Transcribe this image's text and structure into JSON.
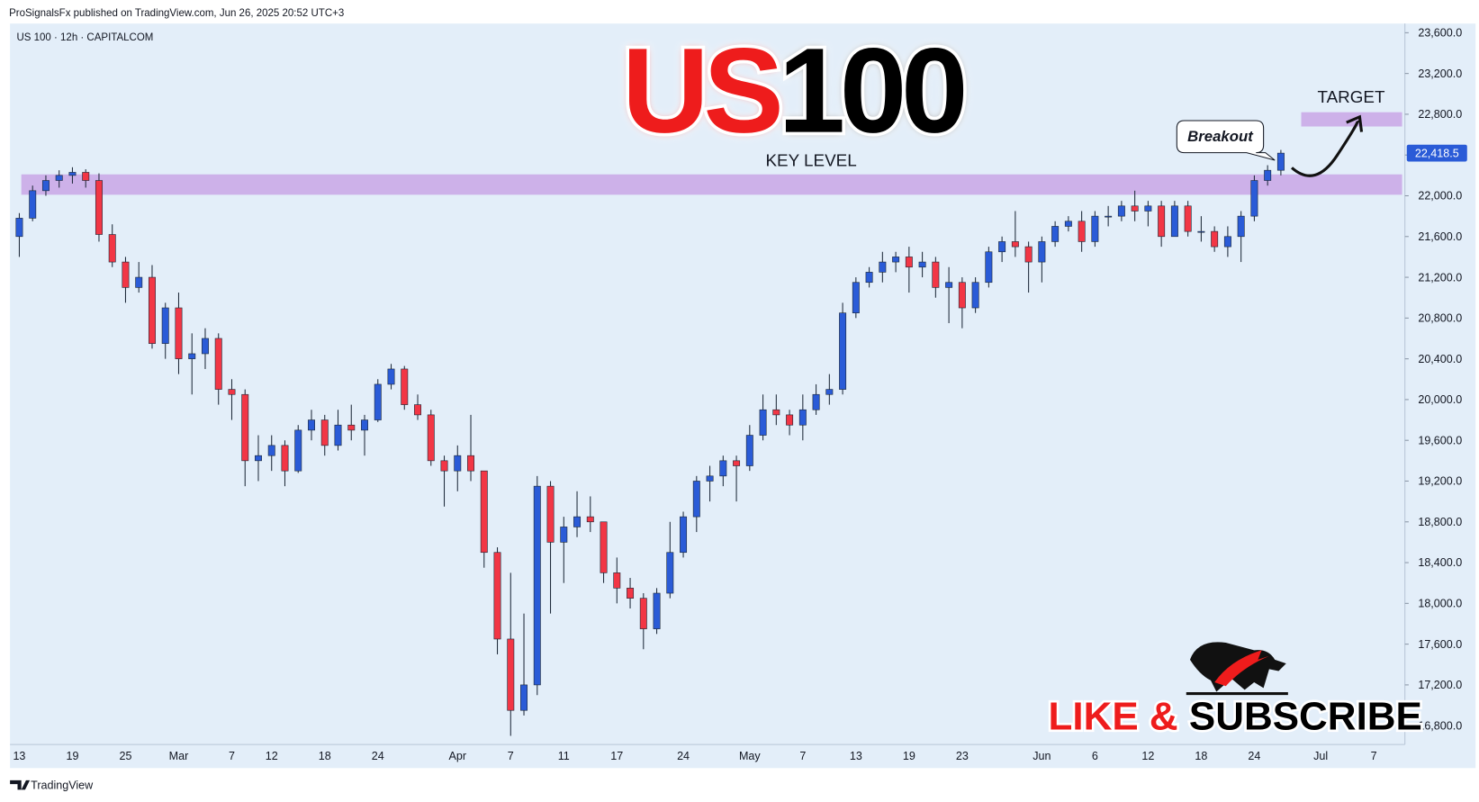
{
  "chart_data": {
    "type": "candlestick",
    "header": "ProSignalsFx published on TradingView.com, Jun 26, 2025 20:52 UTC+3",
    "symbol": "US 100 · 12h · CAPITALCOM",
    "title": [
      "US",
      "100"
    ],
    "title_colors": [
      "#ee1c1c",
      "#000000"
    ],
    "footer": "TradingView",
    "up_color": "#2a5bd7",
    "down_color": "#f23645",
    "grid": false,
    "ylim": [
      16615,
      23690
    ],
    "yticks": [
      {
        "value": 16800,
        "label": "16,800.0"
      },
      {
        "value": 17200,
        "label": "17,200.0"
      },
      {
        "value": 17600,
        "label": "17,600.0"
      },
      {
        "value": 18000,
        "label": "18,000.0"
      },
      {
        "value": 18400,
        "label": "18,400.0"
      },
      {
        "value": 18800,
        "label": "18,800.0"
      },
      {
        "value": 19200,
        "label": "19,200.0"
      },
      {
        "value": 19600,
        "label": "19,600.0"
      },
      {
        "value": 20000,
        "label": "20,000.0"
      },
      {
        "value": 20400,
        "label": "20,400.0"
      },
      {
        "value": 20800,
        "label": "20,800.0"
      },
      {
        "value": 21200,
        "label": "21,200.0"
      },
      {
        "value": 21600,
        "label": "21,600.0"
      },
      {
        "value": 22000,
        "label": "22,000.0"
      },
      {
        "value": 22400,
        "label": "22,400.0"
      },
      {
        "value": 22800,
        "label": "22,800.0"
      },
      {
        "value": 23200,
        "label": "23,200.0"
      },
      {
        "value": 23600,
        "label": "23,600.0"
      }
    ],
    "last_price": {
      "value": 22418.5,
      "label": "22,418.5"
    },
    "key_level": {
      "label": "KEY LEVEL",
      "range": [
        22010,
        22210
      ],
      "color": "#c9a6e6"
    },
    "target": {
      "label": "TARGET",
      "range": [
        22680,
        22820
      ],
      "color": "#c9a6e6"
    },
    "annotation": "Breakout",
    "subscribe": [
      "LIKE &",
      "SUBSCRIBE"
    ],
    "categories": [
      "13",
      null,
      null,
      null,
      "19",
      null,
      null,
      null,
      "25",
      null,
      null,
      null,
      "Mar",
      null,
      null,
      null,
      "7",
      null,
      null,
      "12",
      null,
      null,
      null,
      "18",
      null,
      null,
      null,
      "24",
      null,
      null,
      null,
      null,
      null,
      "Apr",
      null,
      null,
      null,
      "7",
      null,
      null,
      null,
      "11",
      null,
      null,
      null,
      "17",
      null,
      null,
      null,
      null,
      "24",
      null,
      null,
      null,
      null,
      "May",
      null,
      null,
      null,
      "7",
      null,
      null,
      null,
      "13",
      null,
      null,
      null,
      "19",
      null,
      null,
      null,
      "23",
      null,
      null,
      null,
      null,
      null,
      "Jun",
      null,
      null,
      null,
      "6",
      null,
      null,
      null,
      "12",
      null,
      null,
      null,
      "18",
      null,
      null,
      null,
      "24",
      null,
      null,
      null,
      null,
      "Jul",
      null,
      null,
      null,
      "7",
      null,
      null
    ],
    "open": [
      21600,
      21780,
      22050,
      22150,
      22200,
      22230,
      22150,
      21620,
      21350,
      21100,
      21200,
      20550,
      20900,
      20400,
      20450,
      20600,
      20100,
      20050,
      19400,
      19450,
      19550,
      19300,
      19700,
      19800,
      19550,
      19750,
      19700,
      19800,
      20150,
      20300,
      19950,
      19850,
      19400,
      19300,
      19450,
      19300,
      18500,
      17650,
      16950,
      17200,
      19150,
      18600,
      18750,
      18850,
      18800,
      18300,
      18150,
      18050,
      17750,
      18100,
      18500,
      18850,
      19200,
      19250,
      19400,
      19350,
      19650,
      19900,
      19850,
      19750,
      19900,
      20050,
      20100,
      20850,
      21150,
      21250,
      21350,
      21400,
      21300,
      21350,
      21100,
      21150,
      20900,
      21150,
      21450,
      21550,
      21500,
      21350,
      21550,
      21700,
      21750,
      21550,
      21800,
      21800,
      21900,
      21850,
      21900,
      21600,
      21900,
      21650,
      21650,
      21500,
      21600,
      21800,
      22150,
      22250,
      null,
      null,
      null,
      null,
      null,
      null,
      null,
      null,
      null
    ],
    "high": [
      21830,
      22100,
      22200,
      22250,
      22280,
      22260,
      22220,
      21720,
      21400,
      21350,
      21320,
      20950,
      21050,
      20650,
      20700,
      20650,
      20200,
      20100,
      19650,
      19650,
      19600,
      19750,
      19900,
      19850,
      19900,
      19950,
      19850,
      20200,
      20350,
      20330,
      20050,
      19900,
      19450,
      19550,
      19850,
      19300,
      18550,
      18300,
      17900,
      19250,
      19200,
      18850,
      19100,
      19050,
      18800,
      18450,
      18250,
      18100,
      18150,
      18800,
      18900,
      19250,
      19350,
      19450,
      19450,
      19750,
      20050,
      20050,
      19900,
      20050,
      20150,
      20250,
      20950,
      21200,
      21300,
      21450,
      21450,
      21500,
      21450,
      21400,
      21300,
      21200,
      21200,
      21500,
      21600,
      21850,
      21550,
      21600,
      21750,
      21800,
      21850,
      21850,
      21900,
      21950,
      22050,
      21950,
      21950,
      21950,
      21950,
      21800,
      21700,
      21700,
      21850,
      22200,
      22300,
      22450,
      null,
      null,
      null,
      null,
      null,
      null,
      null,
      null,
      null
    ],
    "low": [
      21400,
      21750,
      22000,
      22080,
      22120,
      22080,
      21550,
      21300,
      20950,
      21050,
      20500,
      20400,
      20250,
      20050,
      20300,
      19950,
      19800,
      19150,
      19200,
      19300,
      19150,
      19280,
      19600,
      19450,
      19500,
      19600,
      19450,
      19780,
      20100,
      19900,
      19800,
      19350,
      18950,
      19100,
      19200,
      18350,
      17500,
      16700,
      16900,
      17100,
      17900,
      18200,
      18650,
      18700,
      18200,
      18000,
      17950,
      17550,
      17700,
      18050,
      18450,
      18700,
      19000,
      19150,
      19000,
      19300,
      19600,
      19750,
      19650,
      19600,
      19850,
      19950,
      20050,
      20800,
      21100,
      21150,
      21250,
      21050,
      21200,
      21000,
      20750,
      20700,
      20850,
      21100,
      21350,
      21400,
      21050,
      21150,
      21500,
      21650,
      21450,
      21500,
      21700,
      21750,
      21750,
      21700,
      21500,
      21600,
      21600,
      21550,
      21450,
      21400,
      21350,
      21750,
      22100,
      22200,
      null,
      null,
      null,
      null,
      null,
      null,
      null,
      null,
      null
    ],
    "close": [
      21780,
      22050,
      22150,
      22200,
      22230,
      22150,
      21620,
      21350,
      21100,
      21200,
      20550,
      20900,
      20400,
      20450,
      20600,
      20100,
      20050,
      19400,
      19450,
      19550,
      19300,
      19700,
      19800,
      19550,
      19750,
      19700,
      19800,
      20150,
      20300,
      19950,
      19850,
      19400,
      19300,
      19450,
      19300,
      18500,
      17650,
      16950,
      17200,
      19150,
      18600,
      18750,
      18850,
      18800,
      18300,
      18150,
      18050,
      17750,
      18100,
      18500,
      18850,
      19200,
      19250,
      19400,
      19350,
      19650,
      19900,
      19850,
      19750,
      19900,
      20050,
      20100,
      20850,
      21150,
      21250,
      21350,
      21400,
      21300,
      21350,
      21100,
      21150,
      20900,
      21150,
      21450,
      21550,
      21500,
      21350,
      21550,
      21700,
      21750,
      21550,
      21800,
      21800,
      21900,
      21850,
      21900,
      21600,
      21900,
      21650,
      21650,
      21500,
      21600,
      21800,
      22150,
      22250,
      22418.5,
      null,
      null,
      null,
      null,
      null,
      null,
      null,
      null,
      null
    ]
  }
}
